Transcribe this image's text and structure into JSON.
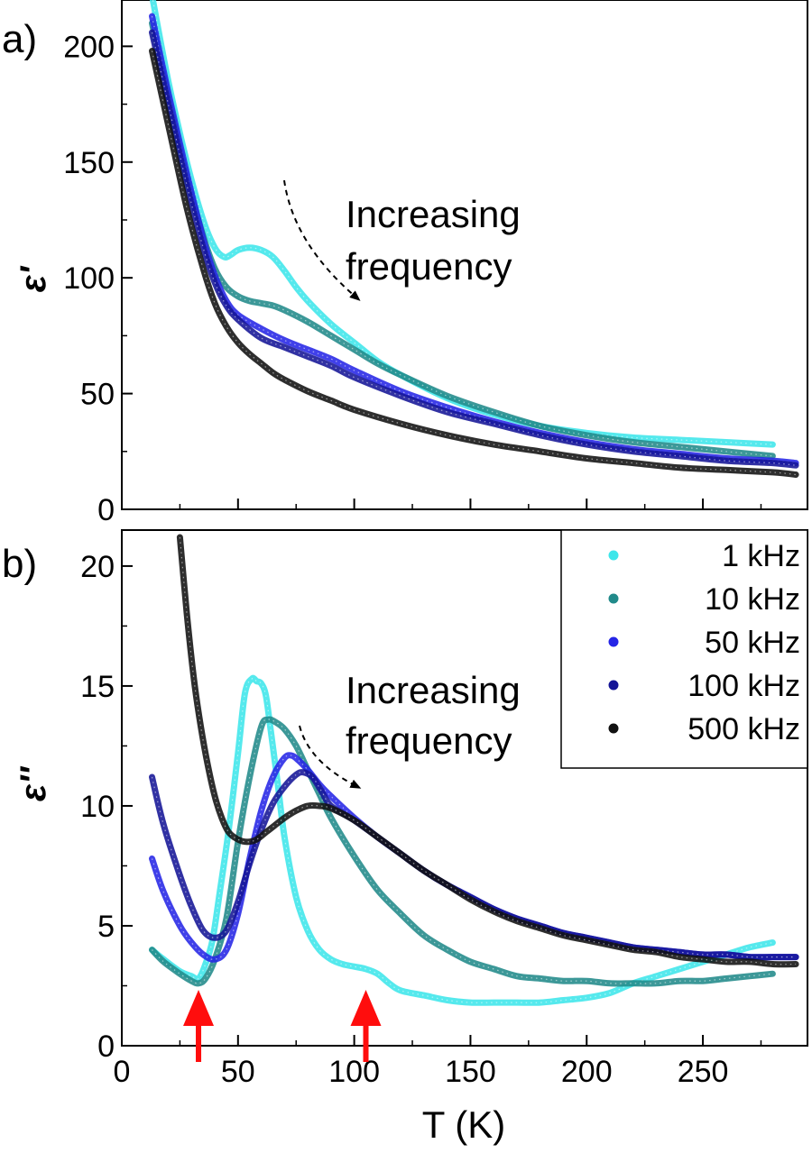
{
  "panel_labels": {
    "a": "a)",
    "b": "b)"
  },
  "annotations": {
    "increasing_frequency_line1": "Increasing",
    "increasing_frequency_line2": "frequency"
  },
  "colors": {
    "s1kHz": "#3ee6ea",
    "s10kHz": "#218a8a",
    "s50kHz": "#2525e6",
    "s100kHz": "#151596",
    "s500kHz": "#111111",
    "arrow_red": "#ff0d0d"
  },
  "chart_data": [
    {
      "type": "scatter",
      "panel": "a",
      "ylabel": "ε'",
      "xlabel": "",
      "xlim": [
        0,
        295
      ],
      "ylim": [
        0,
        220
      ],
      "xticks": [
        0,
        50,
        100,
        150,
        200,
        250
      ],
      "yticks": [
        0,
        50,
        100,
        150,
        200
      ],
      "series": [
        {
          "name": "1 kHz",
          "x": [
            13,
            20,
            28,
            35,
            40,
            44,
            47,
            50,
            55,
            60,
            65,
            70,
            75,
            80,
            90,
            100,
            110,
            120,
            140,
            160,
            180,
            200,
            220,
            240,
            260,
            280
          ],
          "y": [
            222,
            185,
            150,
            125,
            113,
            109,
            110,
            112,
            113,
            112,
            109,
            103,
            96,
            90,
            80,
            72,
            64,
            58,
            48,
            41,
            36,
            33,
            31,
            30,
            29,
            28
          ]
        },
        {
          "name": "10 kHz",
          "x": [
            13,
            20,
            28,
            35,
            40,
            45,
            50,
            55,
            60,
            65,
            70,
            80,
            90,
            100,
            110,
            120,
            140,
            160,
            180,
            200,
            220,
            240,
            260,
            280
          ],
          "y": [
            210,
            178,
            143,
            118,
            104,
            96,
            92,
            90,
            89,
            88,
            86,
            81,
            75,
            69,
            63,
            58,
            49,
            42,
            36,
            32,
            29,
            27,
            25,
            23
          ]
        },
        {
          "name": "50 kHz",
          "x": [
            13,
            20,
            28,
            35,
            40,
            45,
            50,
            60,
            70,
            80,
            90,
            100,
            120,
            140,
            160,
            180,
            200,
            220,
            240,
            260,
            280,
            290
          ],
          "y": [
            213,
            180,
            145,
            117,
            101,
            90,
            84,
            78,
            73,
            69,
            65,
            60,
            51,
            44,
            38,
            33,
            29,
            26,
            24,
            22,
            21,
            20
          ]
        },
        {
          "name": "100 kHz",
          "x": [
            13,
            20,
            28,
            35,
            40,
            45,
            50,
            60,
            70,
            80,
            90,
            100,
            120,
            140,
            160,
            180,
            200,
            220,
            240,
            260,
            280,
            290
          ],
          "y": [
            206,
            175,
            140,
            113,
            98,
            88,
            82,
            74,
            70,
            66,
            62,
            57,
            49,
            42,
            37,
            32,
            28,
            25,
            23,
            21,
            20,
            19
          ]
        },
        {
          "name": "500 kHz",
          "x": [
            13,
            20,
            28,
            35,
            40,
            45,
            50,
            55,
            60,
            65,
            70,
            80,
            90,
            100,
            120,
            140,
            160,
            180,
            200,
            220,
            240,
            260,
            280,
            290
          ],
          "y": [
            198,
            166,
            130,
            104,
            89,
            79,
            72,
            67,
            63,
            59,
            56,
            51,
            47,
            43,
            37,
            32,
            28,
            25,
            22,
            20,
            18,
            17,
            16,
            15
          ]
        }
      ]
    },
    {
      "type": "scatter",
      "panel": "b",
      "ylabel": "ε''",
      "xlabel": "T (K)",
      "xlim": [
        0,
        295
      ],
      "ylim": [
        0,
        21.5
      ],
      "xticks": [
        0,
        50,
        100,
        150,
        200,
        250
      ],
      "yticks": [
        0,
        5,
        10,
        15,
        20
      ],
      "legend_position": "top-right",
      "series": [
        {
          "name": "1 kHz",
          "x": [
            13,
            18,
            25,
            30,
            33,
            36,
            39,
            42,
            46,
            50,
            53,
            56,
            58,
            60,
            62,
            64,
            67,
            70,
            75,
            80,
            85,
            90,
            95,
            100,
            105,
            110,
            115,
            120,
            130,
            140,
            150,
            160,
            170,
            180,
            190,
            200,
            210,
            220,
            230,
            240,
            250,
            260,
            270,
            280
          ],
          "y": [
            4,
            3.6,
            3.1,
            2.9,
            2.8,
            3.4,
            4.4,
            6.3,
            9,
            12.2,
            14.7,
            15.3,
            15.2,
            15.1,
            14.6,
            13.2,
            11,
            8.7,
            6.2,
            4.8,
            4,
            3.6,
            3.4,
            3.3,
            3.2,
            3,
            2.6,
            2.3,
            2.1,
            1.9,
            1.8,
            1.8,
            1.8,
            1.8,
            1.9,
            2,
            2.2,
            2.6,
            2.9,
            3.2,
            3.5,
            3.8,
            4.1,
            4.3
          ]
        },
        {
          "name": "10 kHz",
          "x": [
            13,
            18,
            25,
            30,
            33,
            36,
            40,
            45,
            50,
            55,
            60,
            63,
            66,
            70,
            75,
            80,
            85,
            90,
            100,
            110,
            120,
            130,
            140,
            150,
            160,
            170,
            180,
            190,
            200,
            210,
            220,
            230,
            240,
            250,
            260,
            270,
            280
          ],
          "y": [
            4,
            3.5,
            3,
            2.7,
            2.6,
            2.8,
            3.6,
            5.3,
            8.5,
            11.2,
            13.3,
            13.6,
            13.5,
            13.2,
            12.5,
            11.5,
            10.5,
            9.5,
            7.9,
            6.5,
            5.5,
            4.6,
            4,
            3.5,
            3.2,
            2.9,
            2.8,
            2.7,
            2.7,
            2.6,
            2.6,
            2.6,
            2.7,
            2.7,
            2.8,
            2.9,
            3
          ]
        },
        {
          "name": "50 kHz",
          "x": [
            13,
            18,
            25,
            30,
            35,
            40,
            45,
            50,
            55,
            60,
            65,
            70,
            73,
            76,
            80,
            85,
            90,
            100,
            110,
            120,
            130,
            140,
            150,
            160,
            170,
            180,
            190,
            200,
            210,
            220,
            230,
            240,
            250,
            260,
            270,
            280,
            290
          ],
          "y": [
            7.8,
            6.4,
            5,
            4.3,
            3.8,
            3.6,
            4,
            5.5,
            7.8,
            9.8,
            11.2,
            12,
            12.1,
            11.9,
            11.5,
            10.9,
            10.4,
            9.5,
            8.7,
            8,
            7.3,
            6.7,
            6.2,
            5.7,
            5.3,
            5,
            4.7,
            4.5,
            4.3,
            4.1,
            4,
            3.9,
            3.8,
            3.8,
            3.7,
            3.7,
            3.7
          ]
        },
        {
          "name": "100 kHz",
          "x": [
            13,
            18,
            25,
            30,
            35,
            40,
            45,
            50,
            55,
            60,
            65,
            70,
            75,
            78,
            82,
            86,
            90,
            100,
            110,
            120,
            130,
            140,
            150,
            160,
            170,
            180,
            190,
            200,
            210,
            220,
            230,
            240,
            250,
            260,
            270,
            280,
            290
          ],
          "y": [
            11.2,
            9.2,
            7.1,
            5.8,
            4.8,
            4.5,
            4.8,
            6,
            7.6,
            9,
            10.1,
            10.8,
            11.3,
            11.4,
            11.2,
            10.6,
            10,
            9.4,
            8.7,
            8,
            7.3,
            6.7,
            6.2,
            5.7,
            5.3,
            5,
            4.7,
            4.5,
            4.3,
            4.1,
            4,
            3.9,
            3.8,
            3.8,
            3.7,
            3.7,
            3.7
          ]
        },
        {
          "name": "500 kHz",
          "x": [
            25,
            28,
            31,
            34,
            37,
            40,
            43,
            46,
            50,
            54,
            58,
            62,
            66,
            70,
            75,
            80,
            85,
            90,
            100,
            110,
            120,
            130,
            140,
            150,
            160,
            170,
            180,
            190,
            200,
            210,
            220,
            230,
            240,
            250,
            260,
            270,
            280,
            290
          ],
          "y": [
            21.2,
            18,
            15.3,
            13.3,
            11.7,
            10.4,
            9.5,
            8.9,
            8.6,
            8.5,
            8.6,
            8.9,
            9.2,
            9.5,
            9.8,
            10,
            10,
            9.9,
            9.4,
            8.7,
            8,
            7.3,
            6.7,
            6.1,
            5.6,
            5.2,
            4.9,
            4.6,
            4.4,
            4.2,
            4,
            3.9,
            3.7,
            3.6,
            3.5,
            3.5,
            3.4,
            3.4
          ]
        }
      ],
      "markers": [
        {
          "type": "arrow",
          "x": 33,
          "color": "red"
        },
        {
          "type": "arrow",
          "x": 105,
          "color": "red"
        }
      ]
    }
  ]
}
